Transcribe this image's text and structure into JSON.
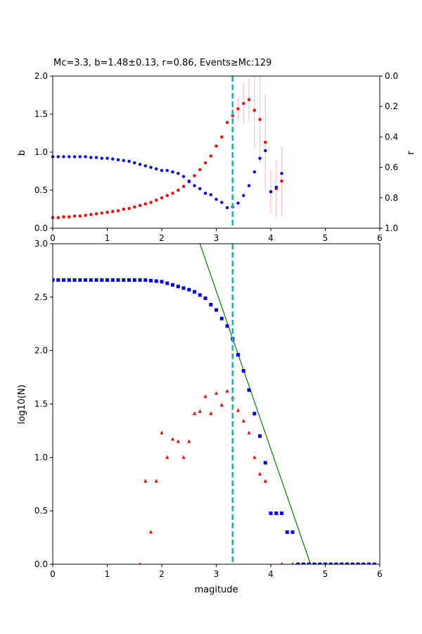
{
  "chart_data": [
    {
      "type": "scatter",
      "title": "Mc=3.3, b=1.48±0.13, r=0.86, Events≥Mc:129",
      "xlabel": "",
      "ylabel": "b",
      "y2label": "r",
      "xlim": [
        0,
        6
      ],
      "ylim": [
        0,
        2
      ],
      "y2lim": [
        1,
        0
      ],
      "x_ticks": [
        "0",
        "1",
        "2",
        "3",
        "4",
        "5",
        "6"
      ],
      "y_ticks": [
        "0.0",
        "0.5",
        "1.0",
        "1.5",
        "2.0"
      ],
      "y2_ticks": [
        "0.0",
        "0.2",
        "0.4",
        "0.6",
        "0.8",
        "1.0"
      ],
      "mc_line": 3.3,
      "colors": {
        "b_series": "#ff0000",
        "r_series": "#0000ff",
        "errorbar": "#ffc0cb",
        "mc_line": "#00bfbf"
      },
      "series": [
        {
          "role": "b",
          "x": [
            0.0,
            0.1,
            0.2,
            0.3,
            0.4,
            0.5,
            0.6,
            0.7,
            0.8,
            0.9,
            1.0,
            1.1,
            1.2,
            1.3,
            1.4,
            1.5,
            1.6,
            1.7,
            1.8,
            1.9,
            2.0,
            2.1,
            2.2,
            2.3,
            2.4,
            2.5,
            2.6,
            2.7,
            2.8,
            2.9,
            3.0,
            3.1,
            3.2,
            3.3,
            3.4,
            3.5,
            3.6,
            3.7,
            3.8,
            3.9,
            4.0,
            4.1,
            4.2
          ],
          "values": [
            0.14,
            0.14,
            0.15,
            0.15,
            0.16,
            0.16,
            0.17,
            0.18,
            0.19,
            0.2,
            0.21,
            0.22,
            0.23,
            0.25,
            0.26,
            0.28,
            0.3,
            0.32,
            0.34,
            0.37,
            0.4,
            0.43,
            0.46,
            0.5,
            0.55,
            0.61,
            0.69,
            0.77,
            0.86,
            0.95,
            1.08,
            1.2,
            1.39,
            1.48,
            1.57,
            1.64,
            1.69,
            1.55,
            1.43,
            1.13,
            0.48,
            0.52,
            0.62
          ],
          "err": [
            0,
            0,
            0,
            0,
            0,
            0,
            0,
            0,
            0,
            0,
            0,
            0,
            0,
            0,
            0,
            0,
            0,
            0,
            0,
            0,
            0,
            0,
            0,
            0,
            0,
            0,
            0,
            0,
            0,
            0,
            0,
            0,
            0,
            0.13,
            0.15,
            0.27,
            0.28,
            0.5,
            0.58,
            0.63,
            0.28,
            0.37,
            0.45
          ]
        },
        {
          "role": "r",
          "x": [
            0.0,
            0.1,
            0.2,
            0.3,
            0.4,
            0.5,
            0.6,
            0.7,
            0.8,
            0.9,
            1.0,
            1.1,
            1.2,
            1.3,
            1.4,
            1.5,
            1.6,
            1.7,
            1.8,
            1.9,
            2.0,
            2.1,
            2.2,
            2.3,
            2.4,
            2.5,
            2.6,
            2.7,
            2.8,
            2.9,
            3.0,
            3.1,
            3.2,
            3.3,
            3.4,
            3.5,
            3.6,
            3.7,
            3.8,
            3.9,
            4.0,
            4.1,
            4.2
          ],
          "values": [
            0.53,
            0.53,
            0.53,
            0.53,
            0.53,
            0.53,
            0.53,
            0.535,
            0.535,
            0.54,
            0.54,
            0.545,
            0.55,
            0.555,
            0.56,
            0.57,
            0.58,
            0.59,
            0.6,
            0.61,
            0.62,
            0.62,
            0.63,
            0.64,
            0.66,
            0.69,
            0.72,
            0.74,
            0.77,
            0.78,
            0.81,
            0.83,
            0.865,
            0.86,
            0.835,
            0.785,
            0.72,
            0.63,
            0.54,
            0.49,
            0.76,
            0.73,
            0.64
          ]
        }
      ]
    },
    {
      "type": "scatter",
      "xlabel": "magitude",
      "ylabel": "log10(N)",
      "xlim": [
        0,
        6
      ],
      "ylim": [
        0,
        3
      ],
      "x_ticks": [
        "0",
        "1",
        "2",
        "3",
        "4",
        "5",
        "6"
      ],
      "y_ticks": [
        "0.0",
        "0.5",
        "1.0",
        "1.5",
        "2.0",
        "2.5",
        "3.0"
      ],
      "mc_line": 3.3,
      "fit_line": {
        "x": [
          2.7,
          4.73
        ],
        "y": [
          3.0,
          0.0
        ]
      },
      "colors": {
        "cumulative": "#0000ff",
        "noncumulative": "#ff0000",
        "fit": "#008000",
        "mc_line": "#00bfbf"
      },
      "series": [
        {
          "role": "cumulative",
          "marker": "square",
          "x": [
            0.0,
            0.1,
            0.2,
            0.3,
            0.4,
            0.5,
            0.6,
            0.7,
            0.8,
            0.9,
            1.0,
            1.1,
            1.2,
            1.3,
            1.4,
            1.5,
            1.6,
            1.7,
            1.8,
            1.9,
            2.0,
            2.1,
            2.2,
            2.3,
            2.4,
            2.5,
            2.6,
            2.7,
            2.8,
            2.9,
            3.0,
            3.1,
            3.2,
            3.3,
            3.4,
            3.5,
            3.6,
            3.7,
            3.8,
            3.9,
            4.0,
            4.1,
            4.2,
            4.3,
            4.4,
            4.5,
            4.6,
            4.7,
            4.8,
            4.9,
            5.0,
            5.1,
            5.2,
            5.3,
            5.4,
            5.5,
            5.6,
            5.7,
            5.8,
            5.9
          ],
          "values": [
            2.66,
            2.66,
            2.66,
            2.66,
            2.66,
            2.66,
            2.66,
            2.66,
            2.66,
            2.66,
            2.66,
            2.66,
            2.66,
            2.66,
            2.66,
            2.66,
            2.66,
            2.66,
            2.655,
            2.65,
            2.645,
            2.63,
            2.615,
            2.6,
            2.585,
            2.57,
            2.55,
            2.52,
            2.49,
            2.43,
            2.38,
            2.3,
            2.23,
            2.11,
            1.96,
            1.81,
            1.63,
            1.41,
            1.2,
            0.95,
            0.477,
            0.477,
            0.477,
            0.301,
            0.301,
            0,
            0,
            0,
            0,
            0,
            0,
            0,
            0,
            0,
            0,
            0,
            0,
            0,
            0,
            0
          ]
        },
        {
          "role": "noncumulative",
          "marker": "triangle",
          "x": [
            1.6,
            1.7,
            1.8,
            1.9,
            2.0,
            2.1,
            2.2,
            2.3,
            2.4,
            2.5,
            2.6,
            2.7,
            2.8,
            2.9,
            3.0,
            3.1,
            3.2,
            3.3,
            3.4,
            3.5,
            3.6,
            3.7,
            3.8,
            3.9,
            4.2,
            4.4
          ],
          "values": [
            0,
            0.778,
            0.301,
            0.778,
            1.23,
            1.0,
            1.17,
            1.15,
            1.0,
            1.15,
            1.41,
            1.43,
            1.57,
            1.41,
            1.6,
            1.49,
            1.62,
            1.56,
            1.44,
            1.34,
            1.23,
            1.0,
            0.845,
            0.778,
            0,
            0
          ]
        }
      ]
    }
  ]
}
